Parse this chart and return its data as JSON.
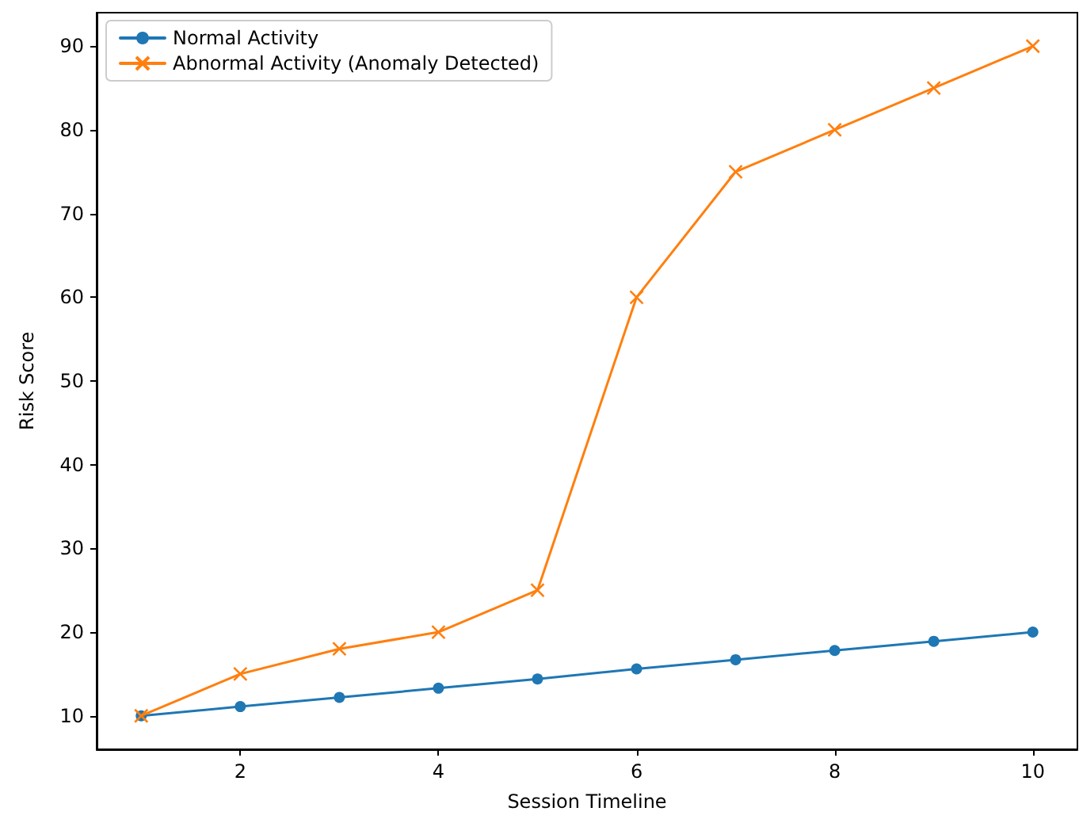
{
  "chart_data": {
    "type": "line",
    "xlabel": "Session Timeline",
    "ylabel": "Risk Score",
    "x": [
      1,
      2,
      3,
      4,
      5,
      6,
      7,
      8,
      9,
      10
    ],
    "series": [
      {
        "name": "Normal Activity",
        "color": "#1f77b4",
        "marker": "circle",
        "values": [
          10,
          11.1,
          12.2,
          13.3,
          14.4,
          15.6,
          16.7,
          17.8,
          18.9,
          20
        ]
      },
      {
        "name": "Abnormal Activity (Anomaly Detected)",
        "color": "#ff7f0e",
        "marker": "cross",
        "values": [
          10,
          15,
          18,
          20,
          25,
          60,
          75,
          80,
          85,
          90
        ]
      }
    ],
    "xlim": [
      0.55,
      10.45
    ],
    "xticks": [
      2,
      4,
      6,
      8,
      10
    ],
    "ylim": [
      6,
      94
    ],
    "yticks": [
      10,
      20,
      30,
      40,
      50,
      60,
      70,
      80,
      90
    ],
    "grid": false,
    "legend": "top left",
    "line_style": "solid"
  }
}
